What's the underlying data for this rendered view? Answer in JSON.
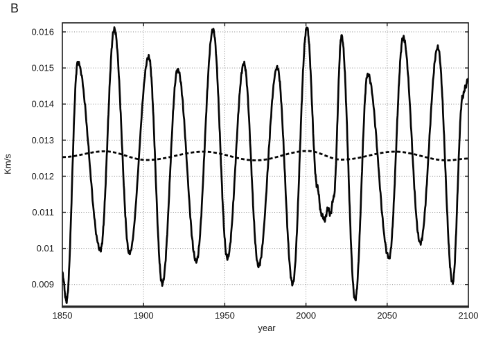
{
  "figure": {
    "panel_label": "B",
    "background": "#ffffff",
    "text_color": "#1a1a1a",
    "axis_color": "#1a1a1a",
    "bottom_axis_color": "#595959",
    "grid_color": "#8a8a8a",
    "line_color": "#050505"
  },
  "chart_data": {
    "type": "line",
    "title": "",
    "xlabel": "year",
    "ylabel": "Km/s",
    "x_range": [
      1850,
      2100
    ],
    "y_range": [
      0.0084,
      0.01625
    ],
    "grid": true,
    "legend_position": "none",
    "x_ticks": [
      {
        "v": 1850,
        "label": "1850"
      },
      {
        "v": 1900,
        "label": "1900"
      },
      {
        "v": 1950,
        "label": "1950"
      },
      {
        "v": 2000,
        "label": "2000"
      },
      {
        "v": 2050,
        "label": "2050"
      },
      {
        "v": 2100,
        "label": "2100"
      }
    ],
    "y_ticks": [
      {
        "v": 0.016,
        "label": "0.016"
      },
      {
        "v": 0.015,
        "label": "0.015"
      },
      {
        "v": 0.014,
        "label": "0.014"
      },
      {
        "v": 0.013,
        "label": "0.013"
      },
      {
        "v": 0.012,
        "label": "0.012"
      },
      {
        "v": 0.011,
        "label": "0.011"
      },
      {
        "v": 0.01,
        "label": "0.01"
      },
      {
        "v": 0.009,
        "label": "0.009"
      }
    ],
    "series": [
      {
        "id": "oscillating-solid",
        "description": "large ~20-year oscillation, solid thick black line",
        "line_style": "solid",
        "line_width": 2.7,
        "color": "#050505",
        "interpolation": "cosine",
        "points": [
          [
            1850,
            0.0093
          ],
          [
            1852.5,
            0.00853
          ],
          [
            1859.5,
            0.01515
          ],
          [
            1873.5,
            0.00996
          ],
          [
            1882,
            0.01608
          ],
          [
            1891.3,
            0.00986
          ],
          [
            1903.2,
            0.01531
          ],
          [
            1911.5,
            0.00902
          ],
          [
            1921,
            0.01496
          ],
          [
            1932.5,
            0.00964
          ],
          [
            1942.8,
            0.01606
          ],
          [
            1951.6,
            0.00973
          ],
          [
            1961.8,
            0.01512
          ],
          [
            1970.8,
            0.00951
          ],
          [
            1982.3,
            0.01502
          ],
          [
            1991.8,
            0.00902
          ],
          [
            2000.6,
            0.01612
          ],
          [
            2007,
            0.0117
          ],
          [
            2009.5,
            0.01095
          ],
          [
            2011.5,
            0.01079
          ],
          [
            2013.5,
            0.0111
          ],
          [
            2015,
            0.01095
          ],
          [
            2017,
            0.0114
          ],
          [
            2021.9,
            0.01589
          ],
          [
            2030.3,
            0.00858
          ],
          [
            2038,
            0.01483
          ],
          [
            2051.2,
            0.00974
          ],
          [
            2059.9,
            0.01585
          ],
          [
            2070.4,
            0.01015
          ],
          [
            2081.2,
            0.01557
          ],
          [
            2090.3,
            0.00905
          ],
          [
            2096.5,
            0.0142
          ],
          [
            2098.2,
            0.01448
          ],
          [
            2100,
            0.01472
          ]
        ],
        "noise": {
          "amplitude": 7e-05,
          "period_years": 1.0
        }
      },
      {
        "id": "smooth-dashed",
        "description": "nearly flat slow ~60-year oscillation, dashed black line",
        "line_style": "dashed",
        "line_width": 2.8,
        "color": "#050505",
        "interpolation": "cosine",
        "points": [
          [
            1850,
            0.01253
          ],
          [
            1876,
            0.01269
          ],
          [
            1902,
            0.01245
          ],
          [
            1937,
            0.01268
          ],
          [
            1969,
            0.01244
          ],
          [
            2001,
            0.0127
          ],
          [
            2022,
            0.01246
          ],
          [
            2055,
            0.01268
          ],
          [
            2087,
            0.01244
          ],
          [
            2100,
            0.01249
          ]
        ]
      }
    ]
  }
}
